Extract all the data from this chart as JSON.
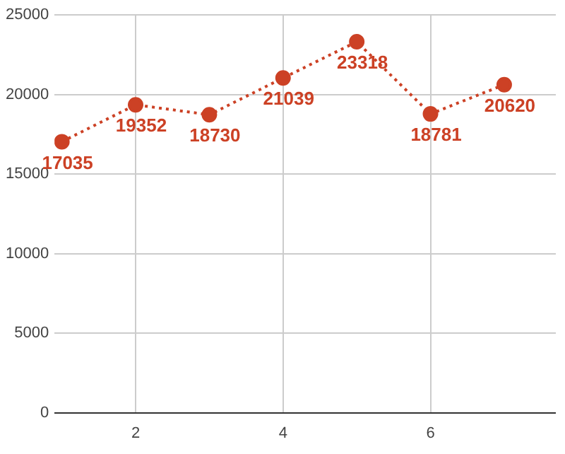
{
  "chart_data": {
    "type": "line",
    "x": [
      1,
      2,
      3,
      4,
      5,
      6,
      7
    ],
    "series": [
      {
        "color": "#cc4125",
        "values": [
          17035,
          19352,
          18730,
          21039,
          23318,
          18781,
          20620
        ]
      }
    ],
    "xlim": [
      0.9,
      7.7
    ],
    "xticks": [
      2,
      4,
      6
    ],
    "ylim": [
      0,
      25000
    ],
    "yticks": [
      0,
      5000,
      10000,
      15000,
      20000,
      25000
    ],
    "grid": true,
    "marker": "circle",
    "line_style": "dotted",
    "data_labels": true,
    "legend": false
  }
}
